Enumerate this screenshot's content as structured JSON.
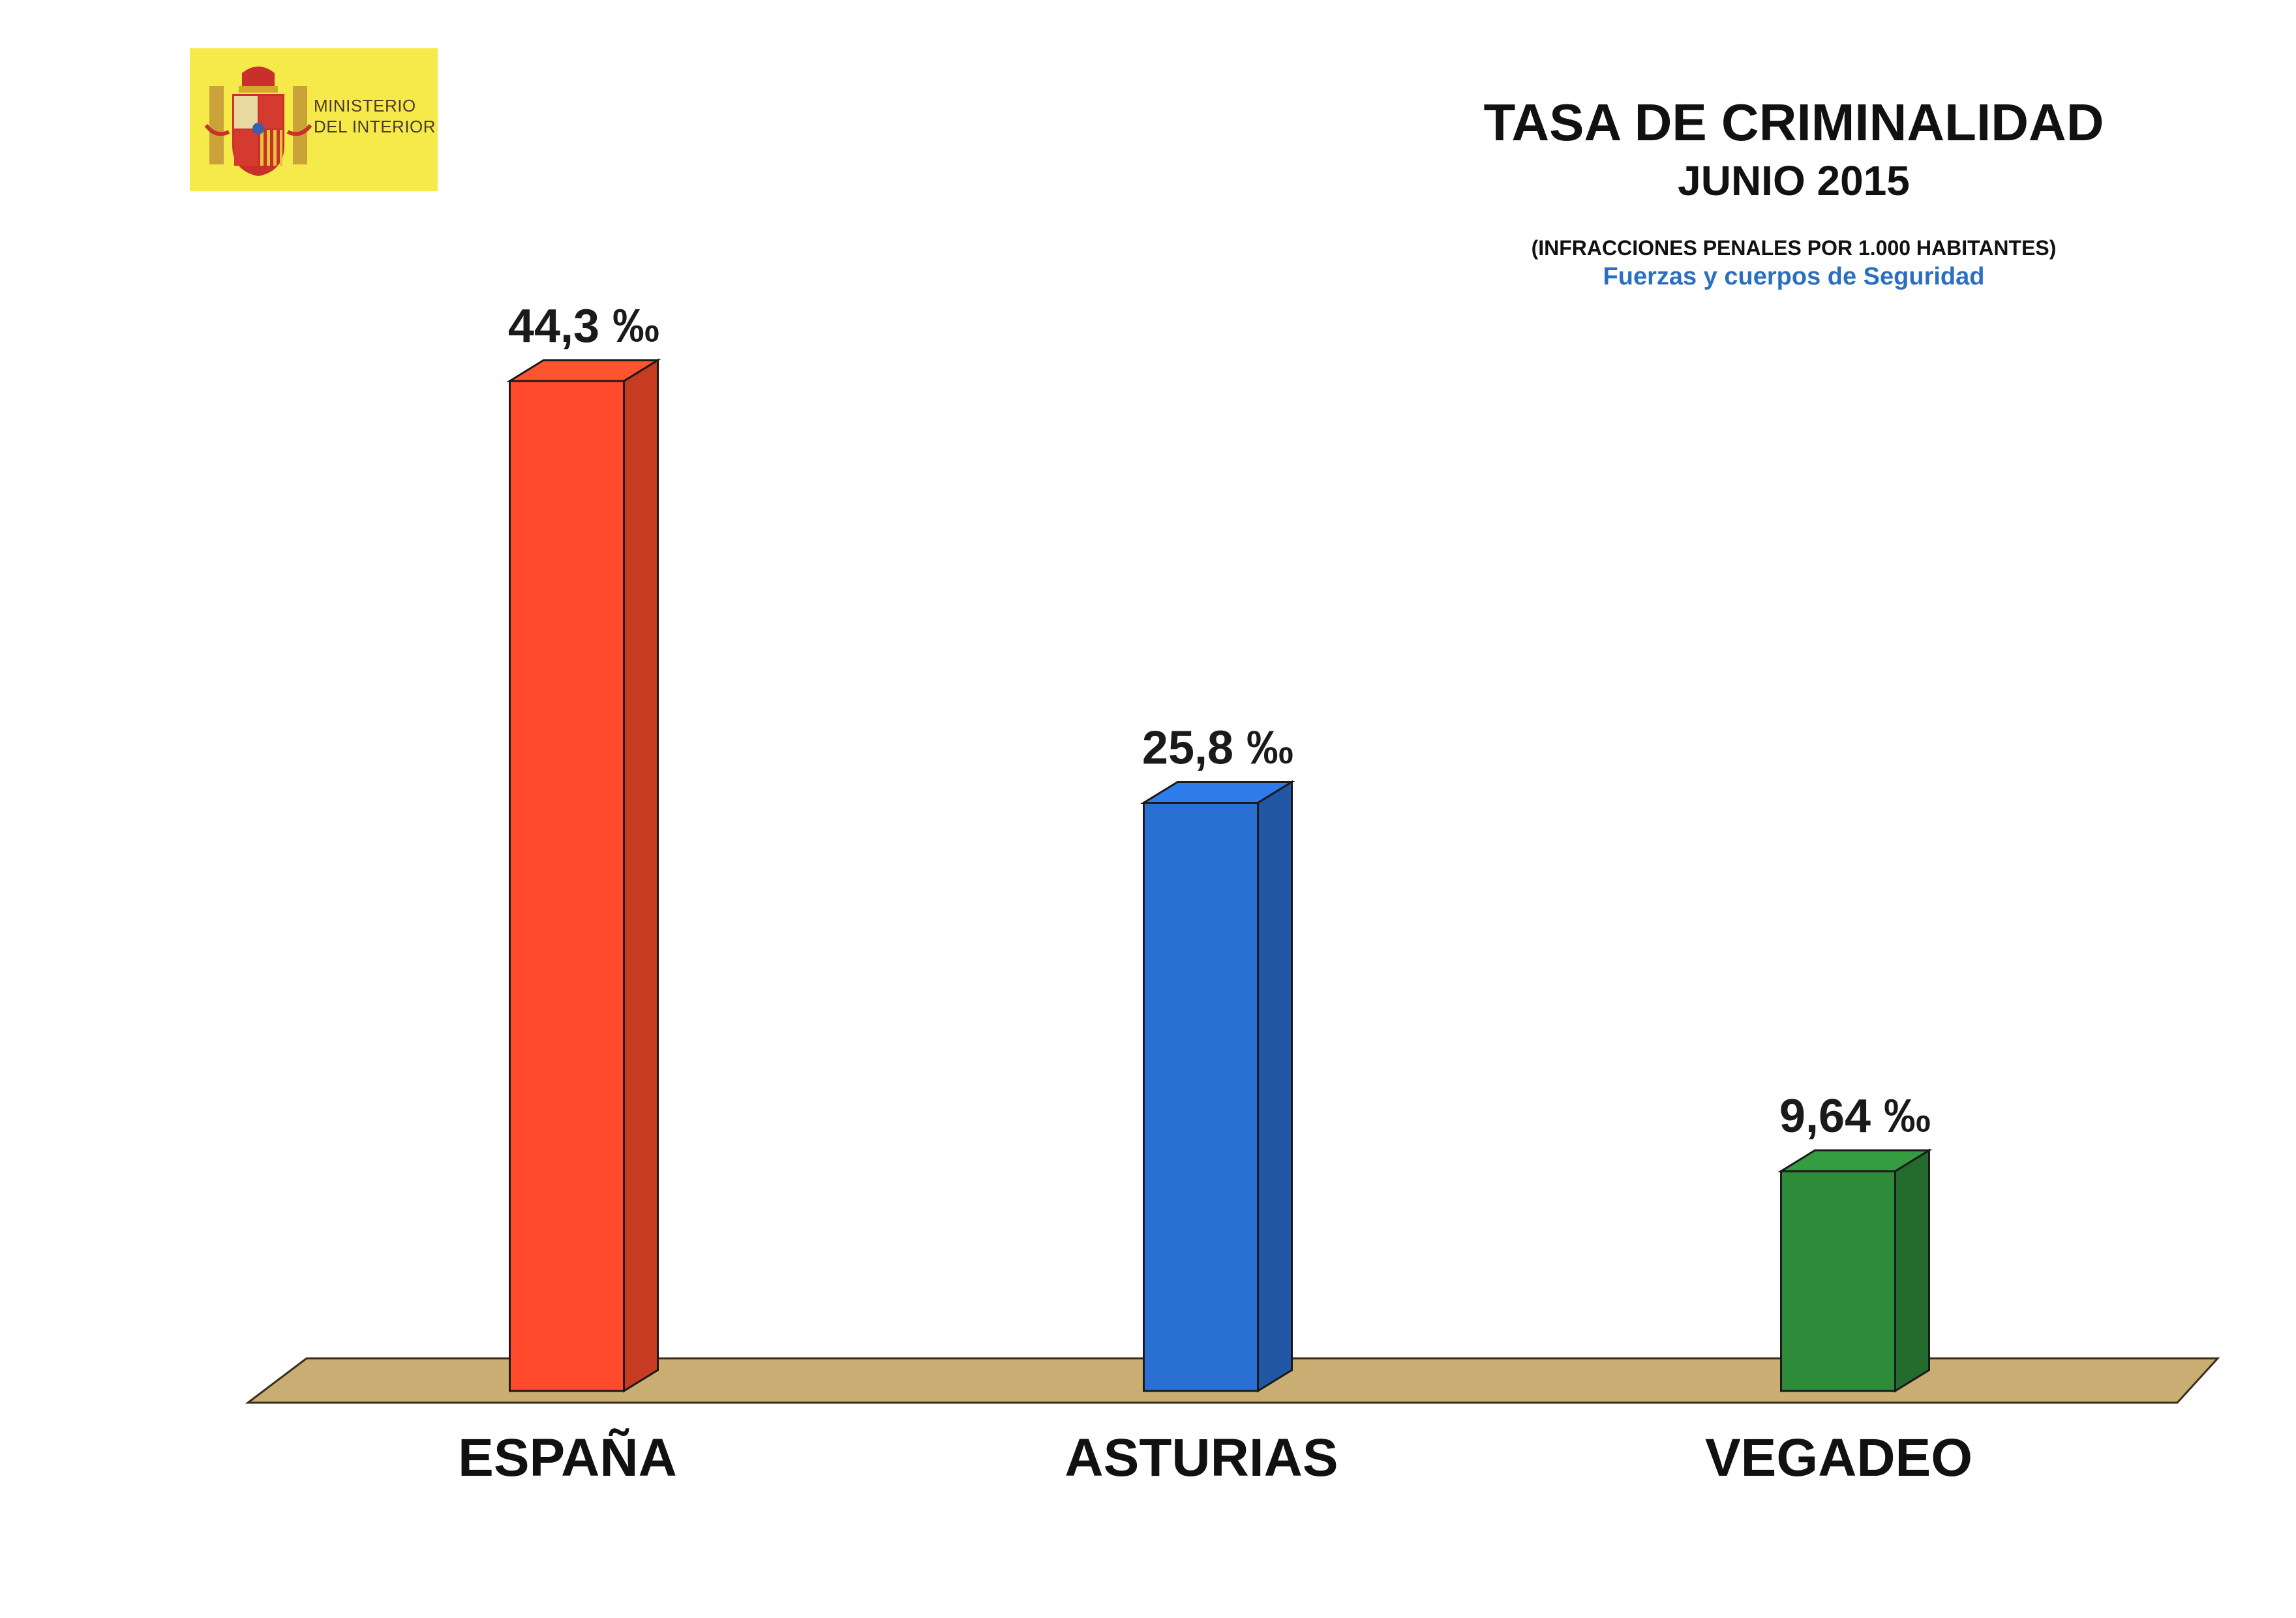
{
  "header": {
    "logo_text_line1": "MINISTERIO",
    "logo_text_line2": "DEL INTERIOR",
    "logo_color": "#f6e94a"
  },
  "chart_data": {
    "type": "bar",
    "title": "TASA DE CRIMINALIDAD",
    "subtitle": "JUNIO 2015",
    "units_note": "(INFRACCIONES PENALES POR 1.000 HABITANTES)",
    "source_note": "Fuerzas y cuerpos de Seguridad",
    "categories": [
      "ESPAÑA",
      "ASTURIAS",
      "VEGADEO"
    ],
    "values": [
      44.3,
      25.8,
      9.64
    ],
    "value_labels": [
      "44,3 ‰",
      "25,8 ‰",
      "9,64 ‰"
    ],
    "colors": [
      "#ff4b2b",
      "#2a6fd4",
      "#2e8b3a"
    ],
    "floor_color": "#c9ad72",
    "ylim": [
      0,
      44.3
    ],
    "grid": false
  }
}
